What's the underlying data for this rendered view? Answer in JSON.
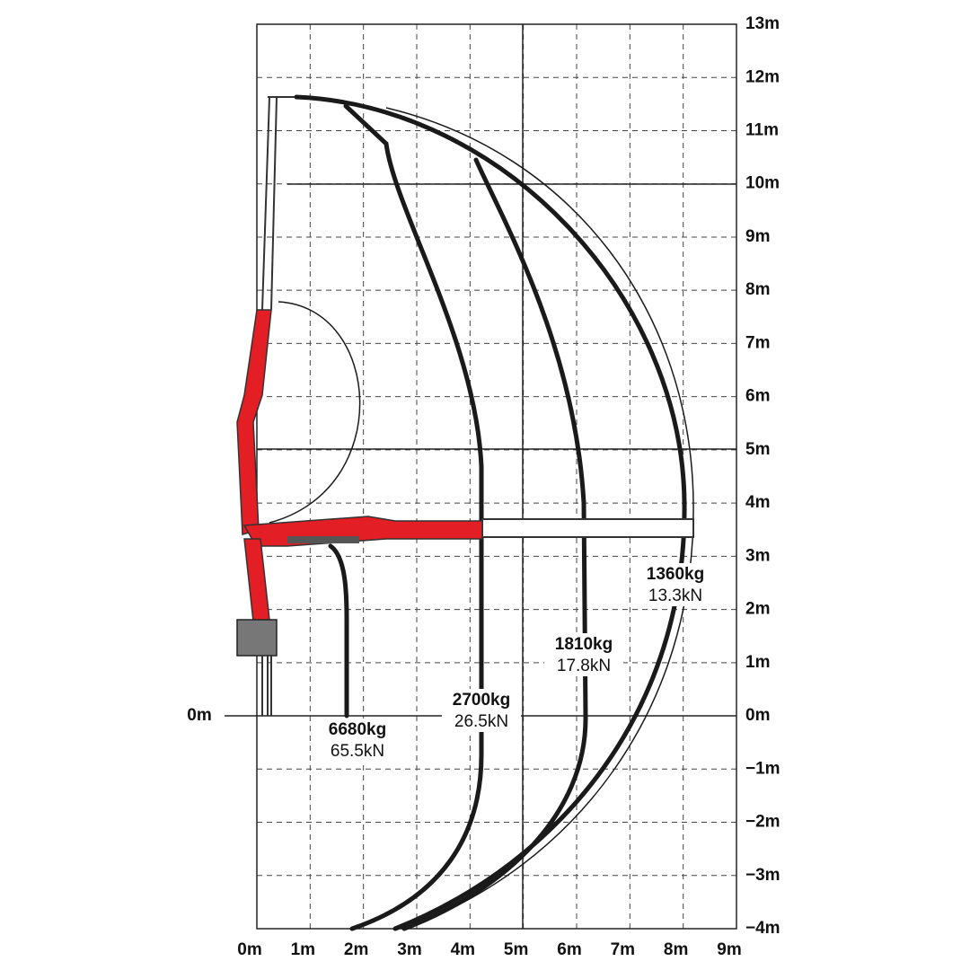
{
  "y_axis": {
    "labels": [
      "13m",
      "12m",
      "11m",
      "10m",
      "9m",
      "8m",
      "7m",
      "6m",
      "5m",
      "4m",
      "3m",
      "2m",
      "1m",
      "0m",
      "−1m",
      "−2m",
      "−3m",
      "−4m"
    ]
  },
  "x_axis": {
    "labels": [
      "0m",
      "1m",
      "2m",
      "3m",
      "4m",
      "5m",
      "6m",
      "7m",
      "8m",
      "9m"
    ]
  },
  "origin_label": "0m",
  "loads": [
    {
      "mass": "6680kg",
      "force": "65.5kN"
    },
    {
      "mass": "2700kg",
      "force": "26.5kN"
    },
    {
      "mass": "1810kg",
      "force": "17.8kN"
    },
    {
      "mass": "1360kg",
      "force": "13.3kN"
    }
  ]
}
